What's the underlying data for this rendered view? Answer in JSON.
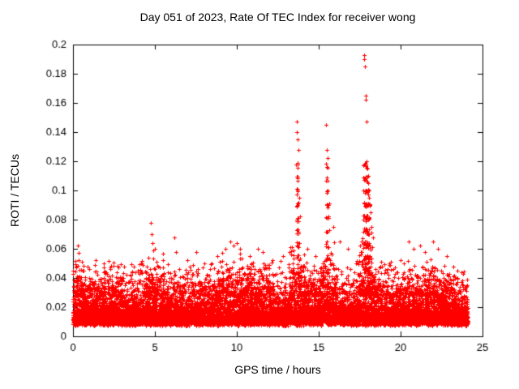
{
  "page": {
    "background": "#ffffff"
  },
  "chart_data": {
    "type": "scatter",
    "title": "Day 051 of 2023, Rate Of TEC Index for receiver wong",
    "xlabel": "GPS time / hours",
    "ylabel": "ROTI / TECUs",
    "series_name": "ROTI",
    "legend": "none",
    "grid": false,
    "marker": "plus",
    "marker_color": "#ff0000",
    "axis_color": "#000000",
    "xlim": [
      0,
      25
    ],
    "ylim": [
      0,
      0.2
    ],
    "x_ticks": [
      0,
      5,
      10,
      15,
      20,
      25
    ],
    "x_tick_labels": [
      "0",
      "5",
      "10",
      "15",
      "20",
      "25"
    ],
    "y_ticks": [
      0,
      0.02,
      0.04,
      0.06,
      0.08,
      0.1,
      0.12,
      0.14,
      0.16,
      0.18,
      0.2
    ],
    "y_tick_labels": [
      "0",
      "0.02",
      "0.04",
      "0.06",
      "0.08",
      "0.1",
      "0.12",
      "0.14",
      "0.16",
      "0.18",
      "0.2"
    ],
    "x_data_range": [
      0,
      24.1
    ],
    "seed": 42,
    "baseline_band": {
      "count": 11000,
      "y_floor": 0.007,
      "exp_scale": 0.009,
      "y_cap": 0.052
    },
    "bursts": [
      {
        "x": 0.4,
        "spread": 0.35,
        "count": 60,
        "y_max": 0.055
      },
      {
        "x": 2.0,
        "spread": 1.0,
        "count": 70,
        "y_max": 0.048
      },
      {
        "x": 5.0,
        "spread": 0.6,
        "count": 70,
        "y_max": 0.06
      },
      {
        "x": 7.8,
        "spread": 1.2,
        "count": 70,
        "y_max": 0.05
      },
      {
        "x": 9.8,
        "spread": 1.1,
        "count": 120,
        "y_max": 0.06
      },
      {
        "x": 11.5,
        "spread": 0.8,
        "count": 90,
        "y_max": 0.055
      },
      {
        "x": 13.7,
        "spread": 0.5,
        "count": 80,
        "y_max": 0.07
      },
      {
        "x": 14.6,
        "spread": 0.9,
        "count": 80,
        "y_max": 0.05
      },
      {
        "x": 15.6,
        "spread": 0.5,
        "count": 70,
        "y_max": 0.07
      },
      {
        "x": 17.9,
        "spread": 0.5,
        "count": 120,
        "y_max": 0.08
      },
      {
        "x": 18.6,
        "spread": 0.7,
        "count": 70,
        "y_max": 0.055
      },
      {
        "x": 21.0,
        "spread": 1.2,
        "count": 100,
        "y_max": 0.055
      },
      {
        "x": 22.5,
        "spread": 1.0,
        "count": 80,
        "y_max": 0.05
      }
    ],
    "spikes": [
      [
        0.3,
        0.062
      ],
      [
        0.35,
        0.057
      ],
      [
        0.9,
        0.048
      ],
      [
        1.4,
        0.052
      ],
      [
        1.9,
        0.05
      ],
      [
        2.3,
        0.046
      ],
      [
        3.1,
        0.048
      ],
      [
        4.2,
        0.05
      ],
      [
        4.75,
        0.078
      ],
      [
        4.8,
        0.07
      ],
      [
        4.85,
        0.064
      ],
      [
        5.0,
        0.06
      ],
      [
        5.5,
        0.052
      ],
      [
        6.2,
        0.068
      ],
      [
        6.3,
        0.058
      ],
      [
        7.0,
        0.052
      ],
      [
        7.5,
        0.058
      ],
      [
        8.0,
        0.05
      ],
      [
        8.8,
        0.055
      ],
      [
        9.3,
        0.06
      ],
      [
        9.6,
        0.065
      ],
      [
        9.8,
        0.062
      ],
      [
        10.0,
        0.064
      ],
      [
        10.2,
        0.06
      ],
      [
        10.8,
        0.055
      ],
      [
        11.3,
        0.06
      ],
      [
        11.6,
        0.058
      ],
      [
        12.2,
        0.052
      ],
      [
        12.8,
        0.055
      ],
      [
        13.2,
        0.058
      ],
      [
        13.65,
        0.147
      ],
      [
        13.68,
        0.14
      ],
      [
        13.72,
        0.135
      ],
      [
        13.75,
        0.128
      ],
      [
        13.8,
        0.095
      ],
      [
        13.85,
        0.082
      ],
      [
        14.3,
        0.06
      ],
      [
        14.8,
        0.055
      ],
      [
        15.45,
        0.145
      ],
      [
        15.5,
        0.128
      ],
      [
        15.55,
        0.122
      ],
      [
        15.6,
        0.09
      ],
      [
        15.9,
        0.075
      ],
      [
        16.3,
        0.065
      ],
      [
        16.8,
        0.06
      ],
      [
        17.6,
        0.065
      ],
      [
        17.7,
        0.08
      ],
      [
        17.75,
        0.193
      ],
      [
        17.78,
        0.19
      ],
      [
        17.82,
        0.185
      ],
      [
        17.85,
        0.165
      ],
      [
        17.88,
        0.162
      ],
      [
        17.9,
        0.147
      ],
      [
        17.93,
        0.12
      ],
      [
        17.96,
        0.115
      ],
      [
        18.0,
        0.11
      ],
      [
        18.02,
        0.105
      ],
      [
        18.05,
        0.1
      ],
      [
        18.08,
        0.095
      ],
      [
        18.1,
        0.09
      ],
      [
        18.15,
        0.085
      ],
      [
        18.2,
        0.075
      ],
      [
        18.3,
        0.068
      ],
      [
        19.3,
        0.05
      ],
      [
        20.0,
        0.052
      ],
      [
        20.5,
        0.065
      ],
      [
        20.8,
        0.06
      ],
      [
        21.2,
        0.062
      ],
      [
        21.5,
        0.058
      ],
      [
        22.0,
        0.065
      ],
      [
        22.3,
        0.06
      ],
      [
        22.8,
        0.055
      ],
      [
        23.2,
        0.048
      ],
      [
        23.7,
        0.044
      ]
    ]
  }
}
